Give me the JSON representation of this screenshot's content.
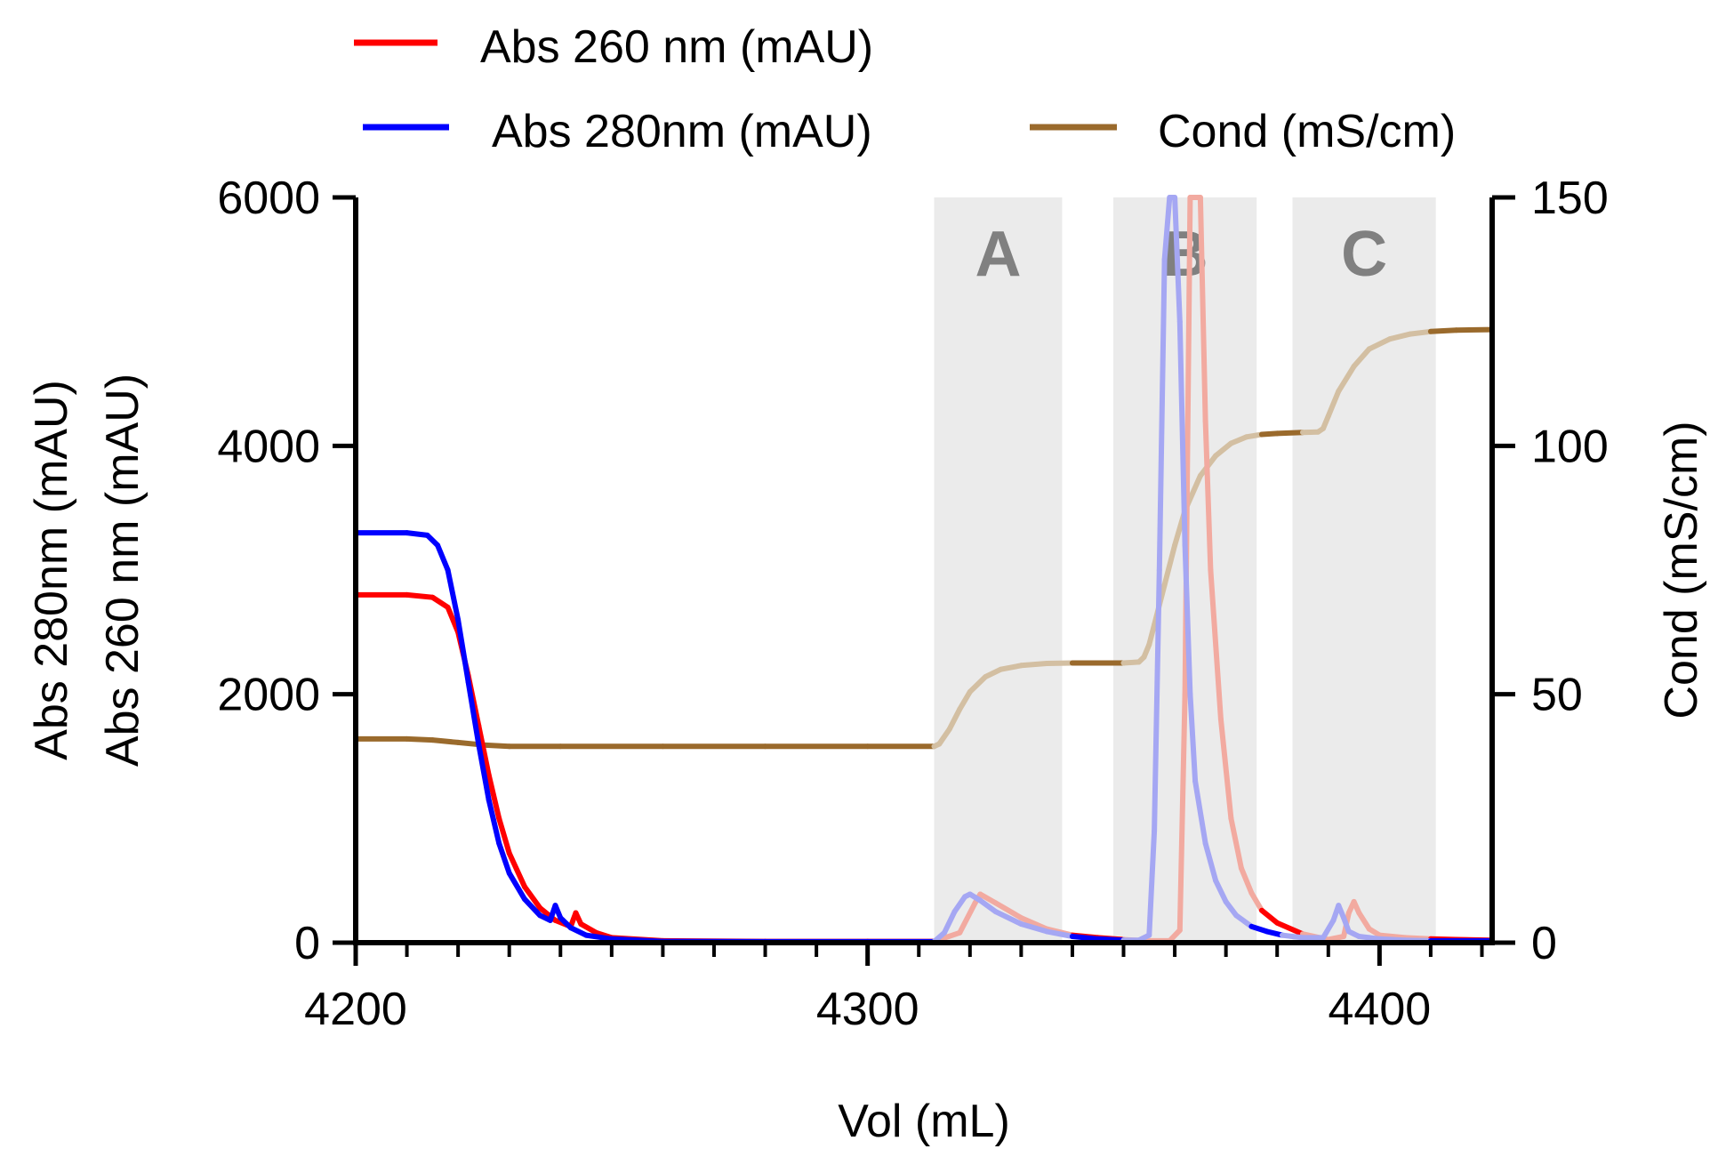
{
  "chart_data": {
    "type": "line",
    "title": "",
    "xlabel": "Vol (mL)",
    "ylabel_left_lines": [
      "Abs 260 nm (mAU)",
      "Abs 280nm (mAU)"
    ],
    "ylabel_right": "Cond (mS/cm)",
    "xlim": [
      4200,
      4422
    ],
    "ylim_left": [
      0,
      6000
    ],
    "ylim_right": [
      0,
      150
    ],
    "x_ticks": [
      4200,
      4300,
      4400
    ],
    "y_left_ticks": [
      0,
      2000,
      4000,
      6000
    ],
    "y_right_ticks": [
      0,
      50,
      100,
      150
    ],
    "regions": [
      {
        "label": "A",
        "x_range": [
          4313,
          4338
        ]
      },
      {
        "label": "B",
        "x_range": [
          4348,
          4376
        ]
      },
      {
        "label": "C",
        "x_range": [
          4383,
          4411
        ]
      }
    ],
    "series": [
      {
        "name": "Abs 260 nm (mAU)",
        "axis": "left",
        "color": "#ff0000",
        "faded_color": "#f2aaa0",
        "x": [
          4200,
          4210,
          4215,
          4218,
          4220,
          4222,
          4224,
          4226,
          4228,
          4230,
          4233,
          4236,
          4239,
          4242,
          4243,
          4244,
          4247,
          4250,
          4260,
          4280,
          4300,
          4313,
          4318,
          4321,
          4322,
          4325,
          4330,
          4335,
          4340,
          4345,
          4350,
          4354,
          4357,
          4359,
          4361,
          4362,
          4363,
          4364,
          4365,
          4366,
          4367,
          4369,
          4371,
          4373,
          4375,
          4377,
          4380,
          4385,
          4390,
          4393,
          4394,
          4395,
          4396,
          4398,
          4400,
          4405,
          4410,
          4415,
          4422
        ],
        "values": [
          2800,
          2800,
          2780,
          2700,
          2500,
          2150,
          1750,
          1350,
          1000,
          720,
          450,
          280,
          180,
          130,
          240,
          150,
          80,
          40,
          15,
          10,
          10,
          10,
          80,
          320,
          390,
          320,
          200,
          110,
          60,
          40,
          25,
          15,
          15,
          15,
          100,
          2000,
          6000,
          6000,
          6000,
          4200,
          3000,
          1800,
          1000,
          600,
          400,
          260,
          160,
          70,
          25,
          50,
          240,
          330,
          240,
          110,
          60,
          40,
          30,
          25,
          20
        ]
      },
      {
        "name": "Abs 280nm (mAU)",
        "axis": "left",
        "color": "#0000ff",
        "faded_color": "#a5a7f3",
        "x": [
          4200,
          4210,
          4214,
          4216,
          4218,
          4220,
          4222,
          4224,
          4226,
          4228,
          4230,
          4233,
          4236,
          4238,
          4239,
          4240,
          4242,
          4245,
          4250,
          4260,
          4280,
          4300,
          4313,
          4315,
          4317,
          4319,
          4320,
          4322,
          4325,
          4330,
          4335,
          4340,
          4345,
          4350,
          4353,
          4355,
          4356,
          4357,
          4358,
          4359,
          4360,
          4361,
          4362,
          4363,
          4364,
          4366,
          4368,
          4370,
          4372,
          4375,
          4378,
          4381,
          4385,
          4389,
          4391,
          4392,
          4393,
          4394,
          4396,
          4398,
          4400,
          4405,
          4410,
          4415,
          4422
        ],
        "values": [
          3300,
          3300,
          3280,
          3200,
          3000,
          2600,
          2100,
          1600,
          1150,
          800,
          560,
          350,
          220,
          180,
          300,
          200,
          120,
          60,
          30,
          10,
          8,
          8,
          8,
          80,
          250,
          370,
          390,
          340,
          250,
          150,
          90,
          50,
          30,
          20,
          20,
          60,
          900,
          3000,
          5500,
          6000,
          6000,
          5000,
          3200,
          2000,
          1300,
          800,
          500,
          330,
          220,
          130,
          90,
          60,
          40,
          40,
          180,
          300,
          200,
          90,
          50,
          40,
          30,
          20,
          15,
          15,
          15
        ]
      },
      {
        "name": "Cond (mS/cm)",
        "axis": "right",
        "color": "#9a6a2c",
        "faded_color": "#d3bfa2",
        "x": [
          4200,
          4210,
          4215,
          4220,
          4225,
          4230,
          4240,
          4260,
          4280,
          4300,
          4313,
          4314,
          4316,
          4318,
          4320,
          4323,
          4326,
          4330,
          4335,
          4340,
          4345,
          4350,
          4353,
          4354,
          4355,
          4356,
          4358,
          4360,
          4362,
          4365,
          4368,
          4371,
          4374,
          4377,
          4380,
          4385,
          4388,
          4389,
          4390,
          4392,
          4395,
          4398,
          4402,
          4406,
          4410,
          4415,
          4422
        ],
        "values": [
          41,
          41,
          40.8,
          40.3,
          39.8,
          39.5,
          39.5,
          39.5,
          39.5,
          39.5,
          39.5,
          40,
          43,
          47,
          50.5,
          53.5,
          55,
          55.8,
          56.2,
          56.3,
          56.3,
          56.3,
          56.5,
          57.5,
          60,
          64,
          72,
          80,
          87,
          94,
          98,
          100.5,
          101.8,
          102.3,
          102.5,
          102.7,
          102.8,
          103.5,
          106,
          111,
          116,
          119.5,
          121.5,
          122.5,
          123,
          123.3,
          123.4
        ]
      }
    ],
    "legend": [
      {
        "label": "Abs 260 nm (mAU)",
        "color": "#ff0000"
      },
      {
        "label": "Abs 280nm (mAU)",
        "color": "#0000ff"
      },
      {
        "label": "Cond (mS/cm)",
        "color": "#9a6a2c"
      }
    ]
  }
}
